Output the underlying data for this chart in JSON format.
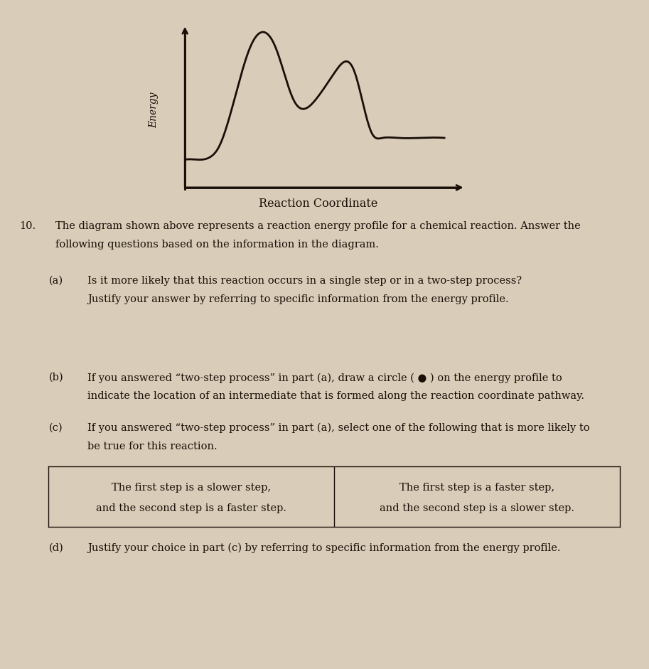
{
  "background_color": "#d9ccb8",
  "curve_color": "#1a0f08",
  "axes_color": "#1a0f08",
  "text_color": "#1a0f08",
  "ylabel": "Energy",
  "xlabel": "Reaction Coordinate",
  "question_number": "10.",
  "intro_line1": "The diagram shown above represents a reaction energy profile for a chemical reaction. Answer the",
  "intro_line2": "following questions based on the information in the diagram.",
  "q_a_label": "(a)",
  "q_a_line1": "Is it more likely that this reaction occurs in a single step or in a two-step process?",
  "q_a_line2": "Justify your answer by referring to specific information from the energy profile.",
  "q_b_label": "(b)",
  "q_b_line1": "If you answered “two-step process” in part (a), draw a circle ( ● ) on the energy profile to",
  "q_b_line2": "indicate the location of an intermediate that is formed along the reaction coordinate pathway.",
  "q_c_label": "(c)",
  "q_c_line1": "If you answered “two-step process” in part (a), select one of the following that is more likely to",
  "q_c_line2": "be true for this reaction.",
  "box_left_line1": "The first step is a slower step,",
  "box_left_line2": "and the second step is a faster step.",
  "box_right_line1": "The first step is a faster step,",
  "box_right_line2": "and the second step is a slower step.",
  "q_d_label": "(d)",
  "q_d_text": "Justify your choice in part (c) by referring to specific information from the energy profile."
}
